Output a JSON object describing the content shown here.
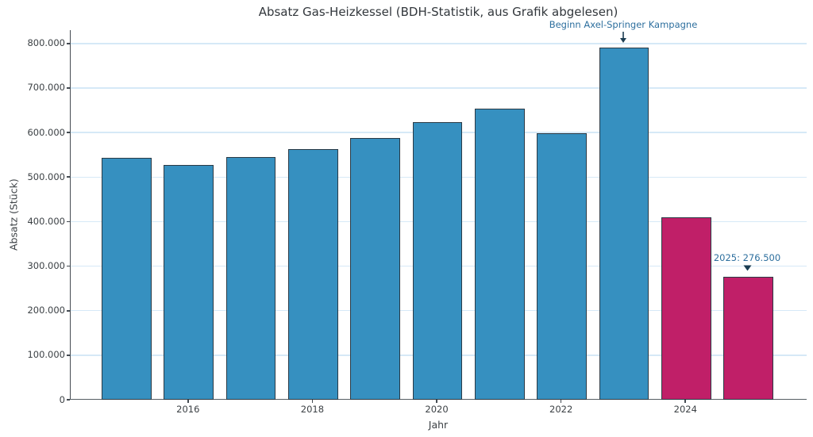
{
  "chart_data": {
    "type": "bar",
    "title": "Absatz Gas-Heizkessel (BDH-Statistik, aus Grafik abgelesen)",
    "xlabel": "Jahr",
    "ylabel": "Absatz (Stück)",
    "grid": "horizontal",
    "legend": "none",
    "xlim": [
      2014.1,
      2025.95
    ],
    "ylim": [
      0,
      830000
    ],
    "bars": [
      {
        "year": 2015,
        "value": 543000,
        "color": "blue"
      },
      {
        "year": 2016,
        "value": 527000,
        "color": "blue"
      },
      {
        "year": 2017,
        "value": 545000,
        "color": "blue"
      },
      {
        "year": 2018,
        "value": 563000,
        "color": "blue"
      },
      {
        "year": 2019,
        "value": 587000,
        "color": "blue"
      },
      {
        "year": 2020,
        "value": 623000,
        "color": "blue"
      },
      {
        "year": 2021,
        "value": 653000,
        "color": "blue"
      },
      {
        "year": 2022,
        "value": 598000,
        "color": "blue"
      },
      {
        "year": 2023,
        "value": 790000,
        "color": "crimson_blue",
        "note": "rendered blue in chart"
      },
      {
        "year": 2024,
        "value": 410000,
        "color": "crimson"
      },
      {
        "year": 2025,
        "value": 276500,
        "color": "crimson"
      }
    ],
    "yticks": [
      {
        "value": 0,
        "label": "0"
      },
      {
        "value": 100000,
        "label": "100.000"
      },
      {
        "value": 200000,
        "label": "200.000"
      },
      {
        "value": 300000,
        "label": "300.000"
      },
      {
        "value": 400000,
        "label": "400.000"
      },
      {
        "value": 500000,
        "label": "500.000"
      },
      {
        "value": 600000,
        "label": "600.000"
      },
      {
        "value": 700000,
        "label": "700.000"
      },
      {
        "value": 800000,
        "label": "800.000"
      }
    ],
    "xticks": [
      {
        "value": 2016,
        "label": "2016"
      },
      {
        "value": 2018,
        "label": "2018"
      },
      {
        "value": 2020,
        "label": "2020"
      },
      {
        "value": 2022,
        "label": "2022"
      },
      {
        "value": 2024,
        "label": "2024"
      }
    ],
    "annotations": {
      "kampagne": {
        "text": "Beginn Axel-Springer Kampagne",
        "target_year": 2023,
        "marker": "down-arrow"
      },
      "wert2025": {
        "text": "2025: 276.500",
        "target_year": 2025,
        "marker": "triangle-down"
      }
    },
    "colors": {
      "blue": "#3690c0",
      "crimson_blue": "#3690c0",
      "crimson": "#c01f68",
      "bar_edge": "#2b3a45",
      "gridline": "#d6e9f7",
      "annotation_text": "#2d6f9e",
      "annotation_marker": "#1c3d52",
      "axis": "#444b52",
      "title_text": "#32373c"
    }
  }
}
